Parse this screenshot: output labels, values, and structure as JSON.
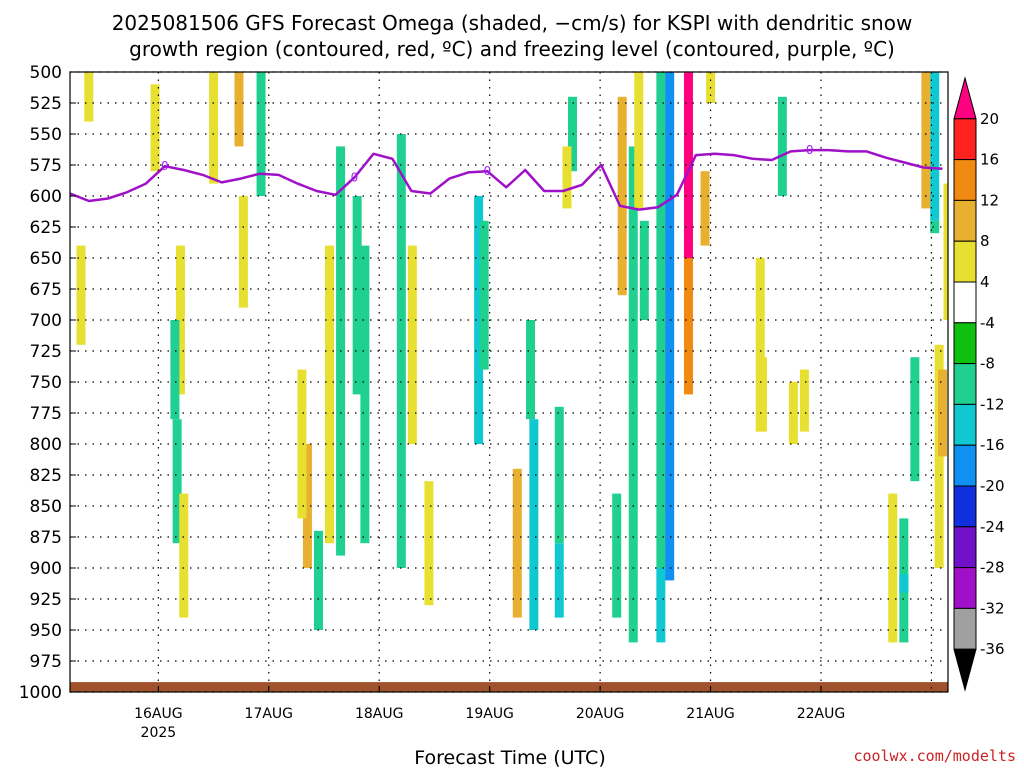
{
  "chart_data": {
    "type": "heatmap",
    "title_line1": "2025081506 GFS Forecast Omega (shaded, −cm/s) for KSPI with dendritic snow",
    "title_line2": "growth region (contoured, red, ºC) and freezing level (contoured, purple, ºC)",
    "xlabel": "Forecast Time (UTC)",
    "credit": "coolwx.com/modelts",
    "y_scale": "pressure (reversed, top 500 to bottom 1000)",
    "ylim": [
      500,
      1000
    ],
    "yticks": [
      500,
      525,
      550,
      575,
      600,
      625,
      650,
      675,
      700,
      725,
      750,
      775,
      800,
      825,
      850,
      875,
      900,
      925,
      950,
      975,
      1000
    ],
    "x_range_days": [
      "15AUG 06Z",
      "22AUG 18Z"
    ],
    "xticks": [
      {
        "label": "16AUG",
        "sub": "2025"
      },
      {
        "label": "17AUG",
        "sub": ""
      },
      {
        "label": "18AUG",
        "sub": ""
      },
      {
        "label": "19AUG",
        "sub": ""
      },
      {
        "label": "20AUG",
        "sub": ""
      },
      {
        "label": "21AUG",
        "sub": ""
      },
      {
        "label": "22AUG",
        "sub": ""
      }
    ],
    "grid": true,
    "colorbar": {
      "position": "right",
      "ticks": [
        20,
        16,
        12,
        8,
        4,
        -4,
        -8,
        -12,
        -16,
        -20,
        -24,
        -28,
        -32,
        -36
      ],
      "colors": [
        "#ff0080",
        "#ff2020",
        "#f08a10",
        "#e8b030",
        "#e8e030",
        "#ffffff",
        "#10c010",
        "#20d090",
        "#10c8d0",
        "#1090f0",
        "#1030e0",
        "#7010c8",
        "#a010c8",
        "#a0a0a0",
        "#000000"
      ]
    },
    "freezing_level": {
      "label": "0",
      "color": "#a010c8",
      "pressure": [
        598,
        604,
        602,
        597,
        590,
        576,
        579,
        583,
        589,
        586,
        582,
        583,
        590,
        596,
        599,
        585,
        566,
        570,
        596,
        598,
        586,
        581,
        580,
        593,
        579,
        596,
        596,
        591,
        575,
        608,
        611,
        609,
        599,
        567,
        566,
        567,
        570,
        571,
        564,
        563,
        563,
        564,
        564,
        569,
        573,
        577,
        578
      ]
    },
    "omega_cells": [
      {
        "time": 0.12,
        "p1": 500,
        "p2": 540,
        "value": 5
      },
      {
        "time": 0.05,
        "p1": 640,
        "p2": 720,
        "value": 5
      },
      {
        "time": 0.72,
        "p1": 510,
        "p2": 580,
        "value": 5
      },
      {
        "time": 0.95,
        "p1": 640,
        "p2": 760,
        "value": 5
      },
      {
        "time": 0.9,
        "p1": 700,
        "p2": 780,
        "value": -8
      },
      {
        "time": 0.92,
        "p1": 780,
        "p2": 880,
        "value": -8
      },
      {
        "time": 0.98,
        "p1": 840,
        "p2": 940,
        "value": 6
      },
      {
        "time": 1.25,
        "p1": 500,
        "p2": 590,
        "value": 6
      },
      {
        "time": 1.48,
        "p1": 500,
        "p2": 560,
        "value": 9
      },
      {
        "time": 1.68,
        "p1": 500,
        "p2": 600,
        "value": -8
      },
      {
        "time": 1.52,
        "p1": 600,
        "p2": 690,
        "value": 5
      },
      {
        "time": 2.1,
        "p1": 800,
        "p2": 900,
        "value": 9
      },
      {
        "time": 2.05,
        "p1": 740,
        "p2": 860,
        "value": 5
      },
      {
        "time": 2.2,
        "p1": 870,
        "p2": 950,
        "value": -8
      },
      {
        "time": 2.3,
        "p1": 640,
        "p2": 880,
        "value": 5
      },
      {
        "time": 2.4,
        "p1": 560,
        "p2": 890,
        "value": -8
      },
      {
        "time": 2.55,
        "p1": 600,
        "p2": 760,
        "value": -8
      },
      {
        "time": 2.62,
        "p1": 640,
        "p2": 880,
        "value": -8
      },
      {
        "time": 2.95,
        "p1": 550,
        "p2": 900,
        "value": -8
      },
      {
        "time": 3.05,
        "p1": 640,
        "p2": 800,
        "value": 5
      },
      {
        "time": 3.2,
        "p1": 830,
        "p2": 930,
        "value": 5
      },
      {
        "time": 3.65,
        "p1": 600,
        "p2": 800,
        "value": -12
      },
      {
        "time": 3.7,
        "p1": 620,
        "p2": 740,
        "value": -8
      },
      {
        "time": 4.0,
        "p1": 820,
        "p2": 940,
        "value": 9
      },
      {
        "time": 4.15,
        "p1": 780,
        "p2": 950,
        "value": -12
      },
      {
        "time": 4.12,
        "p1": 700,
        "p2": 780,
        "value": -8
      },
      {
        "time": 4.38,
        "p1": 770,
        "p2": 880,
        "value": -8
      },
      {
        "time": 4.38,
        "p1": 880,
        "p2": 940,
        "value": -12
      },
      {
        "time": 4.5,
        "p1": 520,
        "p2": 580,
        "value": -8
      },
      {
        "time": 4.45,
        "p1": 560,
        "p2": 610,
        "value": 6
      },
      {
        "time": 4.95,
        "p1": 520,
        "p2": 680,
        "value": 8
      },
      {
        "time": 4.9,
        "p1": 840,
        "p2": 940,
        "value": -8
      },
      {
        "time": 5.05,
        "p1": 560,
        "p2": 960,
        "value": -8
      },
      {
        "time": 5.1,
        "p1": 500,
        "p2": 610,
        "value": 5
      },
      {
        "time": 5.15,
        "p1": 620,
        "p2": 700,
        "value": -8
      },
      {
        "time": 5.3,
        "p1": 500,
        "p2": 900,
        "value": -8
      },
      {
        "time": 5.3,
        "p1": 900,
        "p2": 960,
        "value": -12
      },
      {
        "time": 5.38,
        "p1": 500,
        "p2": 910,
        "value": -16
      },
      {
        "time": 5.55,
        "p1": 500,
        "p2": 650,
        "value": 20
      },
      {
        "time": 5.55,
        "p1": 650,
        "p2": 760,
        "value": 13
      },
      {
        "time": 5.7,
        "p1": 580,
        "p2": 640,
        "value": 8
      },
      {
        "time": 5.75,
        "p1": 500,
        "p2": 525,
        "value": 6
      },
      {
        "time": 6.2,
        "p1": 650,
        "p2": 790,
        "value": 5
      },
      {
        "time": 6.22,
        "p1": 730,
        "p2": 790,
        "value": 5
      },
      {
        "time": 6.4,
        "p1": 520,
        "p2": 600,
        "value": -8
      },
      {
        "time": 6.5,
        "p1": 750,
        "p2": 800,
        "value": 5
      },
      {
        "time": 6.6,
        "p1": 740,
        "p2": 790,
        "value": 5
      },
      {
        "time": 7.4,
        "p1": 840,
        "p2": 960,
        "value": 6
      },
      {
        "time": 7.5,
        "p1": 860,
        "p2": 960,
        "value": -8
      },
      {
        "time": 7.5,
        "p1": 905,
        "p2": 920,
        "value": -12
      },
      {
        "time": 7.6,
        "p1": 730,
        "p2": 830,
        "value": -8
      },
      {
        "time": 7.7,
        "p1": 500,
        "p2": 610,
        "value": 8
      },
      {
        "time": 7.78,
        "p1": 500,
        "p2": 620,
        "value": -12
      },
      {
        "time": 7.78,
        "p1": 620,
        "p2": 630,
        "value": -8
      },
      {
        "time": 7.82,
        "p1": 720,
        "p2": 900,
        "value": 6
      },
      {
        "time": 7.85,
        "p1": 740,
        "p2": 810,
        "value": 10
      },
      {
        "time": 7.9,
        "p1": 590,
        "p2": 700,
        "value": 5
      }
    ],
    "surface_band": {
      "p1": 992,
      "p2": 1000,
      "color": "#a0522d"
    }
  }
}
